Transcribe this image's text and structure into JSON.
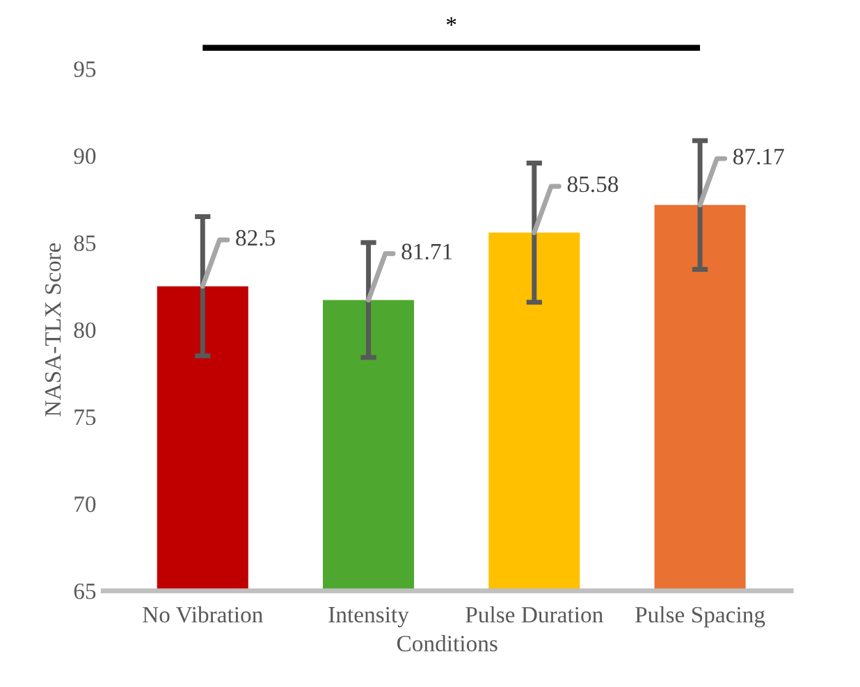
{
  "chart_data": {
    "type": "bar",
    "xlabel": "Conditions",
    "ylabel": "NASA-TLX Score",
    "categories": [
      "No Vibration",
      "Intensity",
      "Pulse Duration",
      "Pulse Spacing"
    ],
    "values": [
      82.5,
      81.71,
      85.58,
      87.17
    ],
    "colors": [
      "#c00000",
      "#4ea72e",
      "#ffc000",
      "#e97132"
    ],
    "errors": [
      4.0,
      3.3,
      4.0,
      3.7
    ],
    "ylim": [
      65,
      95
    ],
    "yticks": [
      65,
      70,
      75,
      80,
      85,
      90,
      95
    ],
    "data_labels": true,
    "annotations": [
      "*"
    ]
  }
}
